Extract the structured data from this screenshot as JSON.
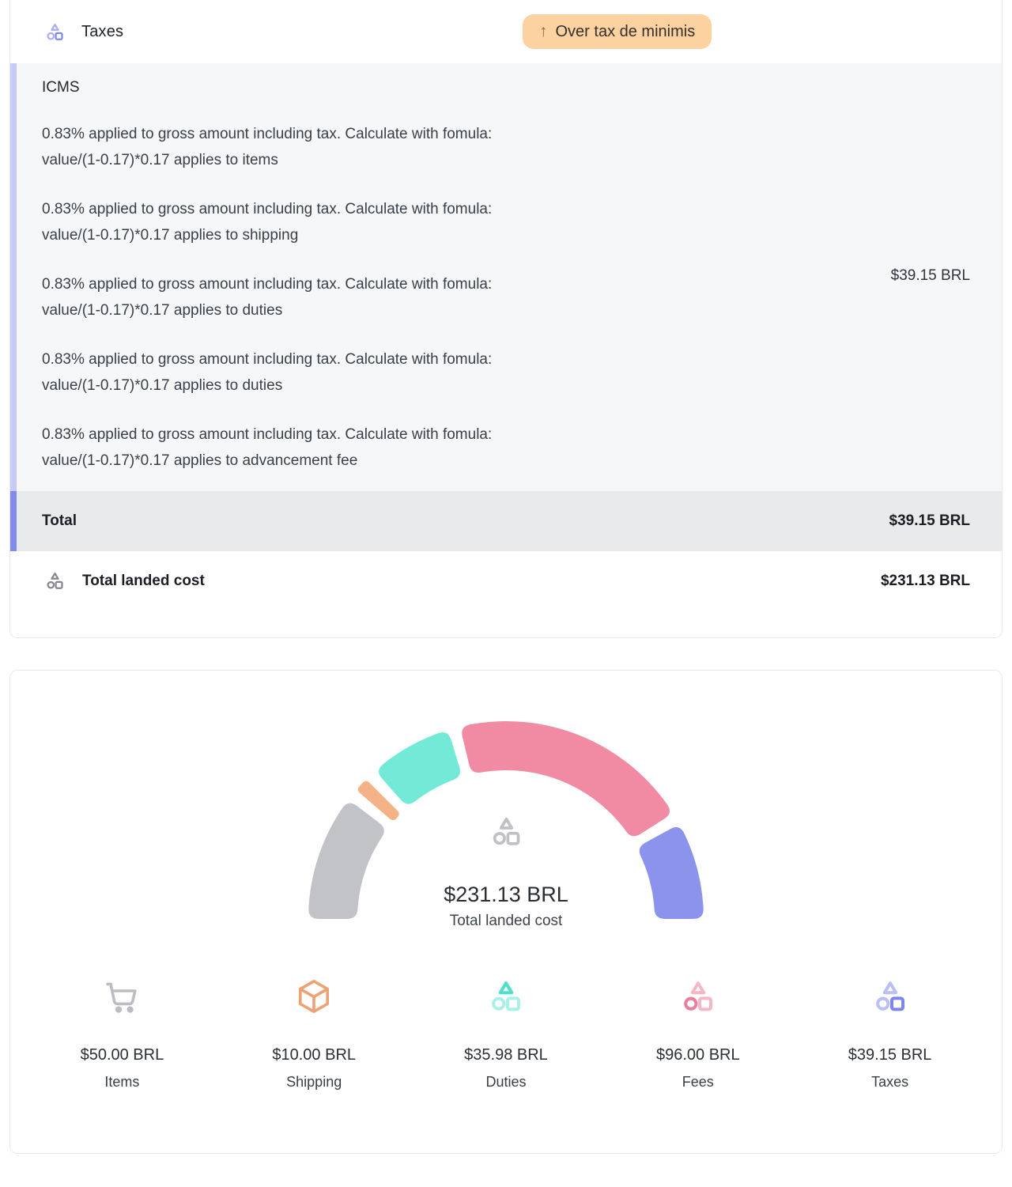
{
  "taxes_card": {
    "header": {
      "title": "Taxes",
      "badge_arrow": "↑",
      "badge_label": "Over tax de minimis"
    },
    "icms": {
      "title": "ICMS",
      "lines": [
        "0.83% applied to gross amount including tax. Calculate with fomula: value/(1-0.17)*0.17 applies to items",
        "0.83% applied to gross amount including tax. Calculate with fomula: value/(1-0.17)*0.17 applies to shipping",
        "0.83% applied to gross amount including tax. Calculate with fomula: value/(1-0.17)*0.17 applies to duties",
        "0.83% applied to gross amount including tax. Calculate with fomula: value/(1-0.17)*0.17 applies to duties",
        "0.83% applied to gross amount including tax. Calculate with fomula: value/(1-0.17)*0.17 applies to advancement fee"
      ],
      "value": "$39.15 BRL"
    },
    "total_row": {
      "label": "Total",
      "value": "$39.15 BRL"
    },
    "landed_row": {
      "label": "Total landed cost",
      "value": "$231.13 BRL"
    }
  },
  "chart_data": {
    "type": "pie",
    "variant": "half-donut-gauge",
    "total": 231.13,
    "currency": "BRL",
    "center": {
      "value": "$231.13 BRL",
      "label": "Total landed cost"
    },
    "segments": [
      {
        "label": "Items",
        "value": 50.0,
        "display": "$50.00 BRL",
        "color": "#c2c3c7",
        "icon": "shopping-cart",
        "icon_primary": "#bcbdc2",
        "icon_secondary": "#bcbdc2"
      },
      {
        "label": "Shipping",
        "value": 10.0,
        "display": "$10.00 BRL",
        "color": "#f6b287",
        "icon": "package",
        "icon_primary": "#eda273",
        "icon_secondary": "#eda273"
      },
      {
        "label": "Duties",
        "value": 35.98,
        "display": "$35.98 BRL",
        "color": "#73e9d8",
        "icon": "shapes",
        "icon_primary": "#4ce0cb",
        "icon_secondary": "#a9f1e8"
      },
      {
        "label": "Fees",
        "value": 96.0,
        "display": "$96.00 BRL",
        "color": "#f18ba3",
        "icon": "shapes",
        "icon_primary": "#eb7e9b",
        "icon_secondary": "#f6b6c6"
      },
      {
        "label": "Taxes",
        "value": 39.15,
        "display": "$39.15 BRL",
        "color": "#8b93ec",
        "icon": "shapes",
        "icon_primary": "#7e86e9",
        "icon_secondary": "#bbbff4"
      }
    ],
    "arc": {
      "start_deg": 180,
      "end_deg": 0,
      "gap_deg": 3.6,
      "outer_radius": 250,
      "inner_radius": 188,
      "corner_radius": 13
    },
    "legend_position": "bottom"
  },
  "accents": {
    "card_border": "#e8e8eb",
    "remnant": "#ef6190",
    "badge_bg": "#fbd2a0",
    "badge_text": "#34302b",
    "badge_arrow": "#a2653e",
    "icms_bg": "#f6f7f9",
    "icms_border": "#c7cbf6",
    "total_bg": "#e9eaec",
    "total_border": "#828bec",
    "header_icon_primary": "#8089ea",
    "header_icon_secondary": "#abaff2",
    "landed_icon": "#85878d",
    "center_icon": "#c0c1c5"
  }
}
